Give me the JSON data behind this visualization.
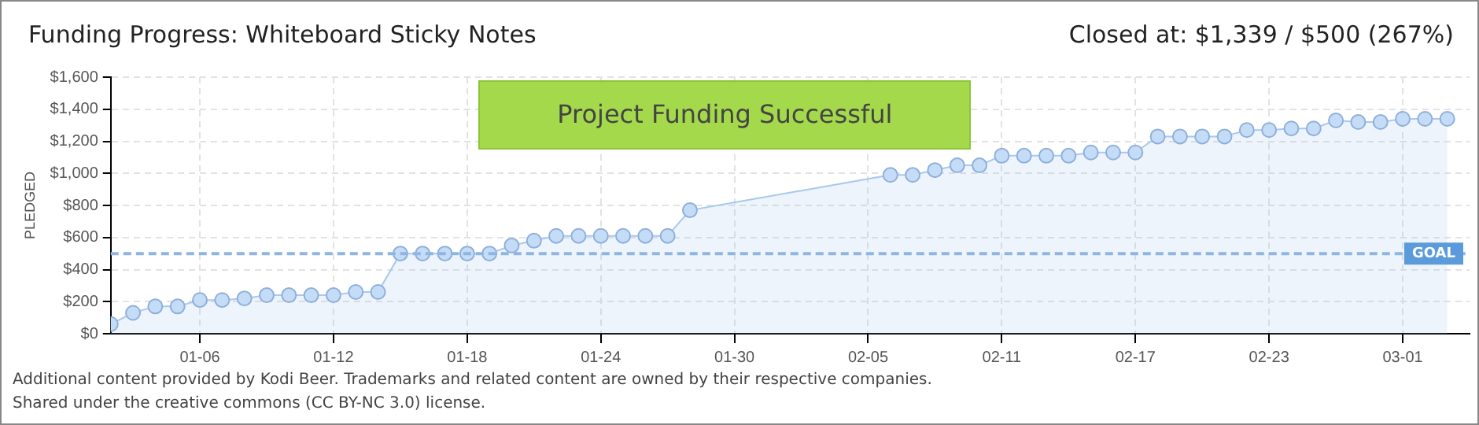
{
  "chart_data": {
    "type": "area",
    "title": "Funding Progress: Whiteboard Sticky Notes",
    "subtitle": "Closed at: $1,339 / $500 (267%)",
    "ylabel": "PLEDGED",
    "x": [
      "--01-02",
      "--01-03",
      "--01-04",
      "--01-05",
      "--01-06",
      "--01-07",
      "--01-08",
      "--01-09",
      "--01-10",
      "--01-11",
      "--01-12",
      "--01-13",
      "--01-14",
      "--01-15",
      "--01-16",
      "--01-17",
      "--01-18",
      "--01-19",
      "--01-20",
      "--01-21",
      "--01-22",
      "--01-23",
      "--01-24",
      "--01-25",
      "--01-26",
      "--01-27",
      "--01-28",
      "--01-29",
      "--01-30",
      "--01-31",
      "--02-01",
      "--02-02",
      "--02-03",
      "--02-04",
      "--02-05",
      "--02-06",
      "--02-07",
      "--02-08",
      "--02-09",
      "--02-10",
      "--02-11",
      "--02-12",
      "--02-13",
      "--02-14",
      "--02-15",
      "--02-16",
      "--02-17",
      "--02-18",
      "--02-19",
      "--02-20",
      "--02-21",
      "--02-22",
      "--02-23",
      "--02-24",
      "--02-25",
      "--02-26",
      "--02-27",
      "--02-28",
      "--03-01",
      "--03-02",
      "--03-03"
    ],
    "series": [
      {
        "color": "#a8c8ee",
        "values": [
          60,
          130,
          170,
          170,
          210,
          210,
          220,
          240,
          240,
          240,
          240,
          260,
          260,
          500,
          500,
          500,
          500,
          500,
          550,
          580,
          610,
          610,
          610,
          610,
          610,
          610,
          770,
          null,
          null,
          null,
          null,
          null,
          null,
          null,
          null,
          990,
          990,
          1020,
          1050,
          1050,
          1110,
          1110,
          1110,
          1110,
          1130,
          1130,
          1130,
          1230,
          1230,
          1230,
          1230,
          1270,
          1270,
          1280,
          1280,
          1330,
          1320,
          1320,
          1340,
          1340,
          1340
        ]
      }
    ],
    "xlim": [
      "--01-02",
      "--03-04"
    ],
    "xticks": [
      {
        "value": "--01-06",
        "label": "01-06"
      },
      {
        "value": "--01-12",
        "label": "01-12"
      },
      {
        "value": "--01-18",
        "label": "01-18"
      },
      {
        "value": "--01-24",
        "label": "01-24"
      },
      {
        "value": "--01-30",
        "label": "01-30"
      },
      {
        "value": "--02-05",
        "label": "02-05"
      },
      {
        "value": "--02-11",
        "label": "02-11"
      },
      {
        "value": "--02-17",
        "label": "02-17"
      },
      {
        "value": "--02-23",
        "label": "02-23"
      },
      {
        "value": "--03-01",
        "label": "03-01"
      }
    ],
    "ylim": [
      0,
      1600
    ],
    "yticks": [
      {
        "value": 0,
        "label": "$0"
      },
      {
        "value": 200,
        "label": "$200"
      },
      {
        "value": 400,
        "label": "$400"
      },
      {
        "value": 600,
        "label": "$600"
      },
      {
        "value": 800,
        "label": "$800"
      },
      {
        "value": 1000,
        "label": "$1,000"
      },
      {
        "value": 1200,
        "label": "$1,200"
      },
      {
        "value": 1400,
        "label": "$1,400"
      },
      {
        "value": 1600,
        "label": "$1,600"
      }
    ],
    "ref_lines": [
      {
        "axis": "y",
        "value": 500,
        "label": "GOAL",
        "color": "#8fb6e3",
        "line_style": "dashed"
      }
    ],
    "annotations": [
      "Project Funding Successful",
      "Additional content provided by Kodi Beer. Trademarks and related content are owned by their respective companies.",
      "Shared under the creative commons (CC BY-NC 3.0) license."
    ],
    "grid": true,
    "legend": false,
    "marker": "circle",
    "line_style": "solid"
  }
}
